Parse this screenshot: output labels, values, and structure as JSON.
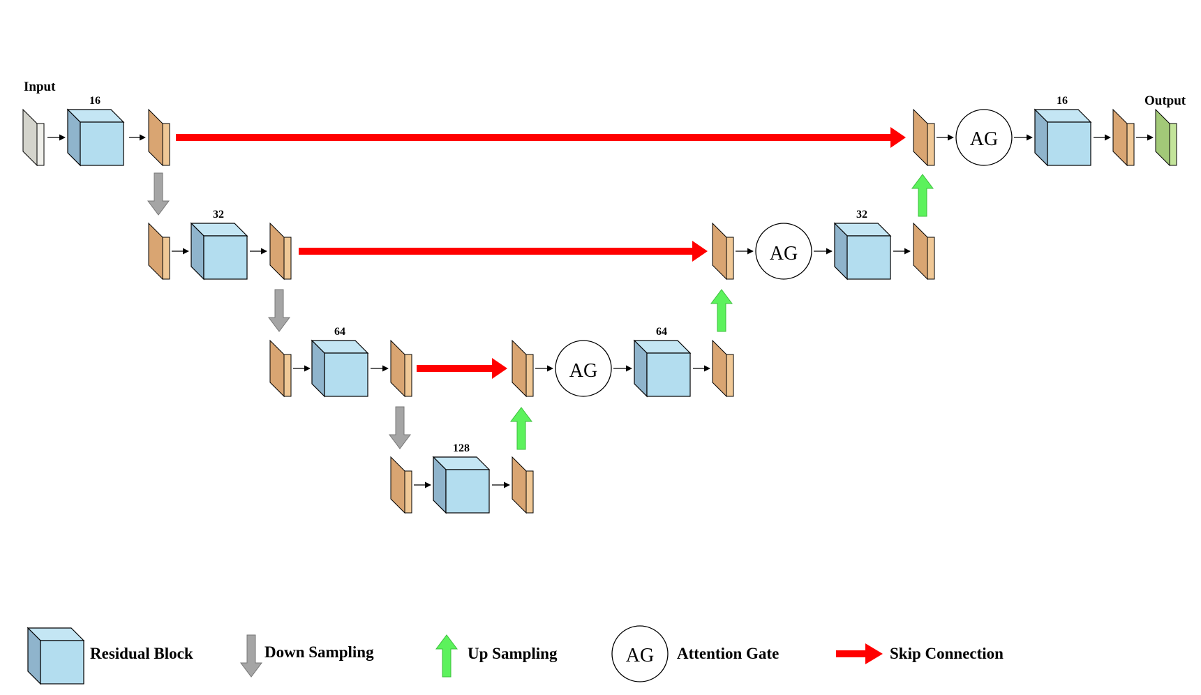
{
  "labels": {
    "input": "Input",
    "output": "Output"
  },
  "channels": {
    "enc1": "16",
    "enc2": "32",
    "enc3": "64",
    "bottleneck": "128",
    "dec3": "64",
    "dec2": "32",
    "dec1": "16"
  },
  "attention_gate_label": "AG",
  "legend": {
    "residual_block": "Residual Block",
    "down_sampling": "Down Sampling",
    "up_sampling": "Up Sampling",
    "ag_symbol": "AG",
    "attention_gate": "Attention Gate",
    "skip_connection": "Skip Connection"
  },
  "colors": {
    "residual_front": "#b3ddef",
    "residual_top": "#c4e6f4",
    "residual_side": "#8fb4cc",
    "feature_front": "#f0c896",
    "feature_side": "#d9a572",
    "input_front": "#efefea",
    "input_side": "#d4d4cc",
    "output_front": "#c3e49a",
    "output_side": "#a2c978",
    "skip": "#ff0000",
    "down": "#a5a5a5",
    "up": "#5cf25c"
  }
}
